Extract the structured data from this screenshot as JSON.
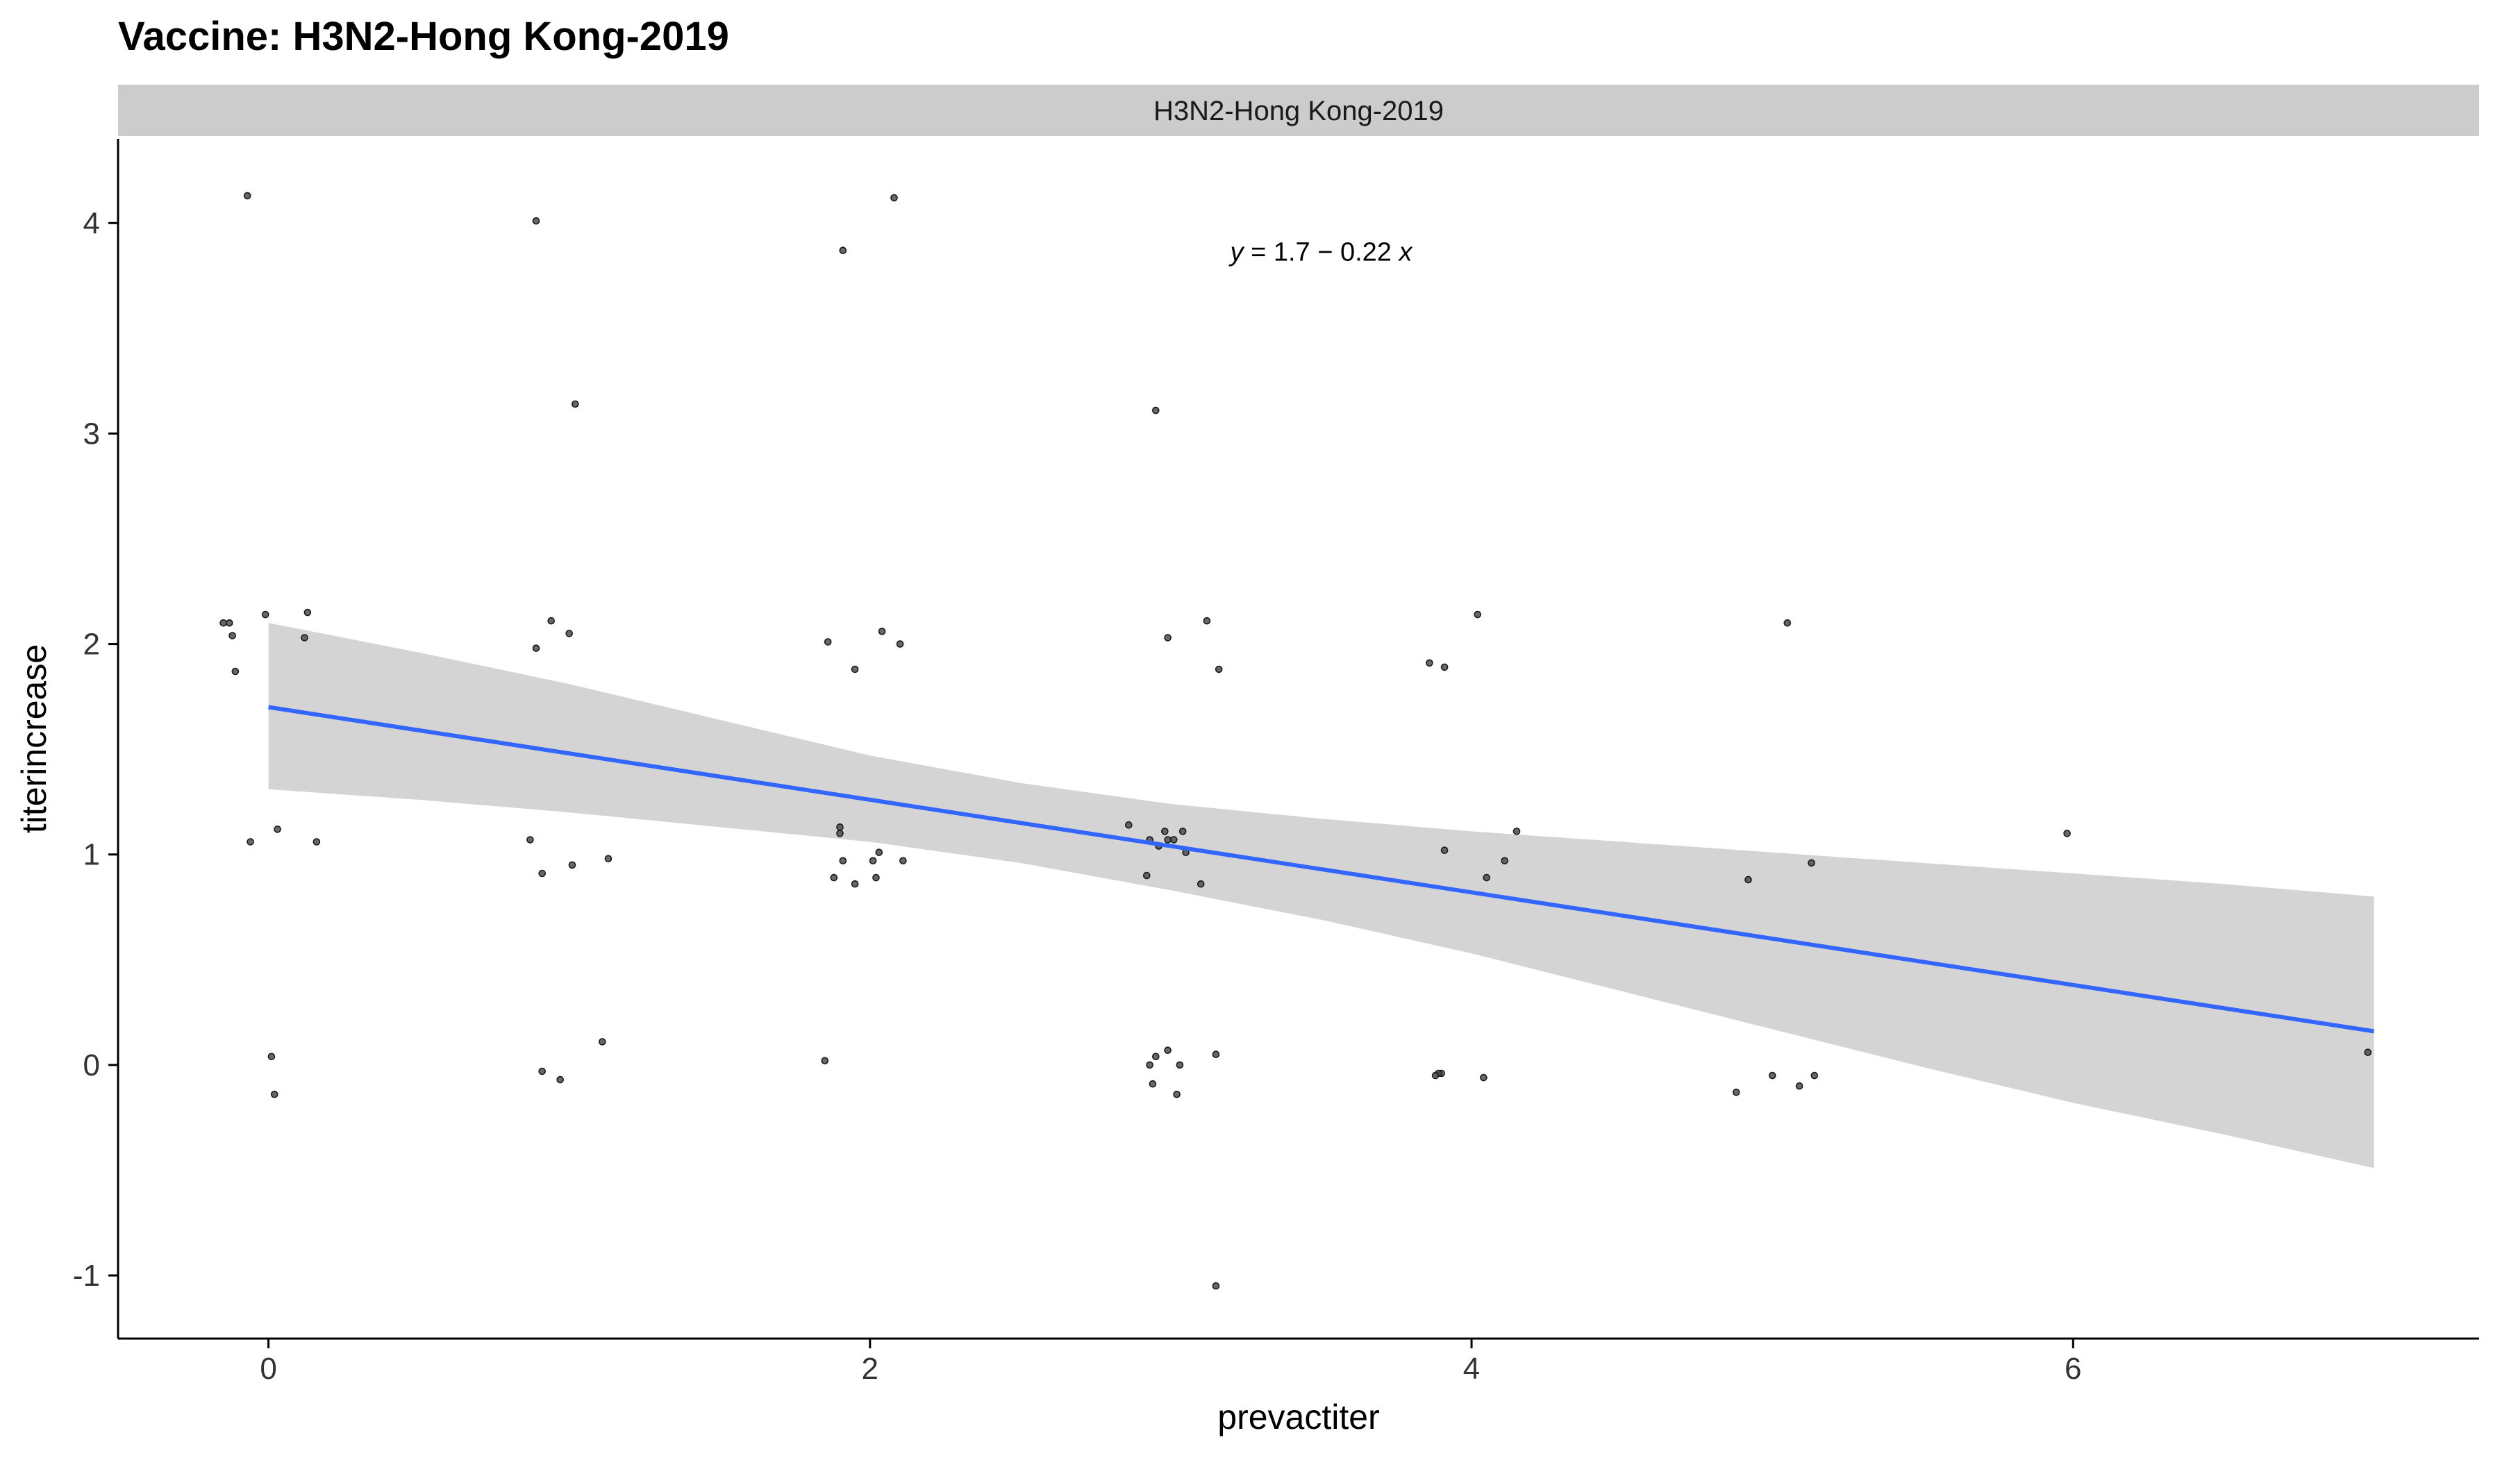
{
  "chart_data": {
    "type": "scatter",
    "title": "Vaccine: H3N2-Hong Kong-2019",
    "facet_label": "H3N2-Hong Kong-2019",
    "xlabel": "prevactiter",
    "ylabel": "titerincrease",
    "xlim": [
      -0.5,
      7.35
    ],
    "ylim": [
      -1.3,
      4.4
    ],
    "x_ticks": [
      0,
      2,
      4,
      6
    ],
    "y_ticks": [
      -1,
      0,
      1,
      2,
      3,
      4
    ],
    "grid": false,
    "legend": "none",
    "annotation": {
      "y_var": "y",
      "equals": " = 1.7 − 0.22 ",
      "x_var": "x",
      "at": {
        "x": 3.5,
        "y": 3.86
      }
    },
    "regression": {
      "intercept": 1.7,
      "slope": -0.22,
      "x_range": [
        0,
        7
      ],
      "band": {
        "x": [
          0,
          0.5,
          1,
          1.5,
          2,
          2.5,
          3,
          3.5,
          4,
          4.5,
          5,
          5.5,
          6,
          6.5,
          7
        ],
        "lower": [
          1.31,
          1.26,
          1.2,
          1.13,
          1.06,
          0.96,
          0.83,
          0.69,
          0.53,
          0.35,
          0.17,
          -0.01,
          -0.18,
          -0.33,
          -0.49
        ],
        "upper": [
          2.1,
          1.96,
          1.81,
          1.64,
          1.47,
          1.34,
          1.24,
          1.17,
          1.11,
          1.06,
          1.01,
          0.96,
          0.91,
          0.86,
          0.8
        ]
      }
    },
    "colors": {
      "line": "#3366FF",
      "band": "#d4d4d4",
      "points": "#4d4d4d",
      "strip": "#cccccc"
    },
    "series": [
      {
        "x": [
          -0.07,
          -0.15,
          -0.13,
          -0.12,
          -0.11,
          0.13,
          -0.01,
          0.12,
          0.16,
          -0.06,
          0.03,
          0.01,
          0.02,
          0.89,
          0.89,
          0.94,
          1.02,
          0.87,
          1.0,
          0.91,
          1.01,
          1.13,
          1.11,
          0.91,
          0.97,
          1.91,
          2.08,
          1.86,
          2.04,
          2.1,
          1.95,
          1.9,
          1.9,
          1.91,
          2.11,
          2.03,
          1.88,
          1.95,
          2.02,
          2.01,
          1.85,
          2.95,
          3.12,
          2.99,
          3.16,
          2.86,
          2.98,
          3.04,
          2.99,
          3.01,
          2.93,
          2.96,
          3.05,
          3.1,
          2.92,
          2.99,
          2.95,
          3.15,
          2.93,
          3.03,
          2.94,
          3.02,
          3.15,
          4.02,
          3.86,
          3.91,
          4.15,
          3.91,
          4.11,
          4.05,
          3.9,
          3.89,
          3.88,
          4.04,
          5.05,
          5.98,
          4.92,
          5.13,
          4.88,
          5.0,
          5.09,
          5.14,
          6.98
        ],
        "y": [
          4.13,
          2.1,
          2.1,
          2.04,
          1.87,
          2.15,
          2.14,
          2.03,
          1.06,
          1.06,
          1.12,
          0.04,
          -0.14,
          4.01,
          1.98,
          2.11,
          3.14,
          1.07,
          2.05,
          0.91,
          0.95,
          0.98,
          0.11,
          -0.03,
          -0.07,
          3.87,
          4.12,
          2.01,
          2.06,
          2.0,
          1.88,
          1.13,
          1.1,
          0.97,
          0.97,
          1.01,
          0.89,
          0.86,
          0.89,
          0.97,
          0.02,
          3.11,
          2.11,
          2.03,
          1.88,
          1.14,
          1.11,
          1.11,
          1.07,
          1.07,
          1.07,
          1.04,
          1.01,
          0.86,
          0.9,
          0.07,
          0.04,
          0.05,
          0.0,
          0.0,
          -0.09,
          -0.14,
          -1.05,
          2.14,
          1.91,
          1.89,
          1.11,
          1.02,
          0.97,
          0.89,
          -0.04,
          -0.04,
          -0.05,
          -0.06,
          2.1,
          1.1,
          0.88,
          0.96,
          -0.13,
          -0.05,
          -0.1,
          -0.05,
          0.06
        ]
      }
    ]
  }
}
